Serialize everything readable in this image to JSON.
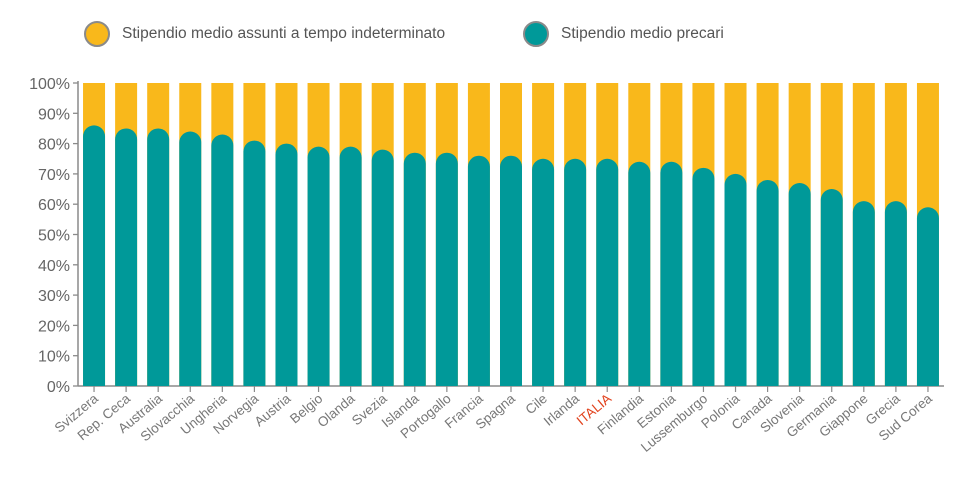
{
  "chart_data": {
    "type": "bar",
    "stacked": true,
    "percent_stacked": true,
    "categories": [
      "Svizzera",
      "Rep. Ceca",
      "Australia",
      "Slovacchia",
      "Ungheria",
      "Norvegia",
      "Austria",
      "Belgio",
      "Olanda",
      "Svezia",
      "Islanda",
      "Portogallo",
      "Francia",
      "Spagna",
      "Cile",
      "Irlanda",
      "ITALIA",
      "Finlandia",
      "Estonia",
      "Lussemburgo",
      "Polonia",
      "Canada",
      "Slovenia",
      "Germania",
      "Giappone",
      "Grecia",
      "Sud Corea"
    ],
    "highlight_category": "ITALIA",
    "highlight_color": "#e2431e",
    "series": [
      {
        "name": "Stipendio medio precari",
        "color": "#009999",
        "values": [
          86,
          85,
          85,
          84,
          83,
          81,
          80,
          79,
          79,
          78,
          77,
          77,
          76,
          76,
          75,
          75,
          75,
          74,
          74,
          72,
          70,
          68,
          67,
          65,
          61,
          61,
          59
        ]
      },
      {
        "name": "Stipendio medio assunti a tempo indeterminato",
        "color": "#f9b81b",
        "values": [
          14,
          15,
          15,
          16,
          17,
          19,
          20,
          21,
          21,
          22,
          23,
          23,
          24,
          24,
          25,
          25,
          25,
          26,
          26,
          28,
          30,
          32,
          33,
          35,
          39,
          39,
          41
        ]
      }
    ],
    "yticks": [
      "0%",
      "10%",
      "20%",
      "30%",
      "40%",
      "50%",
      "60%",
      "70%",
      "80%",
      "90%",
      "100%"
    ],
    "ylim": [
      0,
      100
    ],
    "legend_position": "top",
    "grid": false,
    "axis_color": "#8a8a8a"
  }
}
